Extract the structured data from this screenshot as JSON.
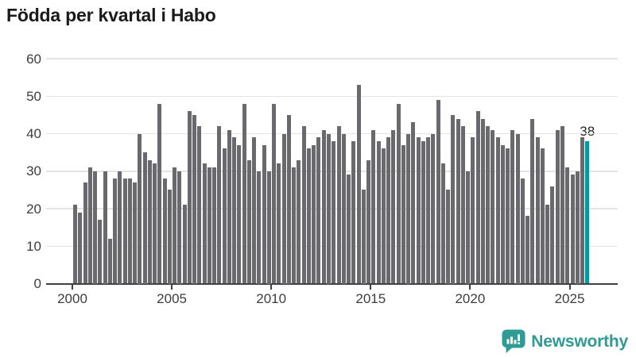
{
  "title": "Födda per kvartal i Habo",
  "chart_data": {
    "type": "bar",
    "title": "Födda per kvartal i Habo",
    "frequency": "quarterly",
    "start_period": "2000 Q1",
    "end_period": "2025 Q4",
    "values": [
      21,
      19,
      27,
      31,
      30,
      17,
      30,
      12,
      28,
      30,
      28,
      28,
      27,
      40,
      35,
      33,
      32,
      48,
      28,
      25,
      31,
      30,
      21,
      46,
      45,
      42,
      32,
      31,
      31,
      42,
      36,
      41,
      39,
      37,
      48,
      33,
      39,
      30,
      37,
      30,
      48,
      32,
      40,
      45,
      31,
      33,
      42,
      36,
      37,
      39,
      41,
      40,
      38,
      42,
      40,
      29,
      38,
      53,
      25,
      33,
      41,
      38,
      36,
      39,
      41,
      48,
      37,
      40,
      43,
      39,
      38,
      39,
      40,
      49,
      32,
      25,
      45,
      44,
      42,
      30,
      39,
      46,
      44,
      42,
      41,
      39,
      37,
      36,
      41,
      40,
      28,
      18,
      44,
      39,
      36,
      21,
      26,
      41,
      42,
      31,
      29,
      30,
      39,
      38
    ],
    "x_tick_labels": [
      "2000",
      "2005",
      "2010",
      "2015",
      "2020",
      "2025"
    ],
    "y_ticks": [
      0,
      10,
      20,
      30,
      40,
      50,
      60
    ],
    "ylim": [
      0,
      60
    ],
    "grid": "horizontal",
    "bar_color": "#69696e",
    "highlight_last": true,
    "highlight_color": "#009a9d",
    "last_value_label": "38"
  },
  "logo": {
    "text": "Newsworthy",
    "icon": "bar-chart-speech-bubble-icon",
    "color": "#2e9b94"
  }
}
